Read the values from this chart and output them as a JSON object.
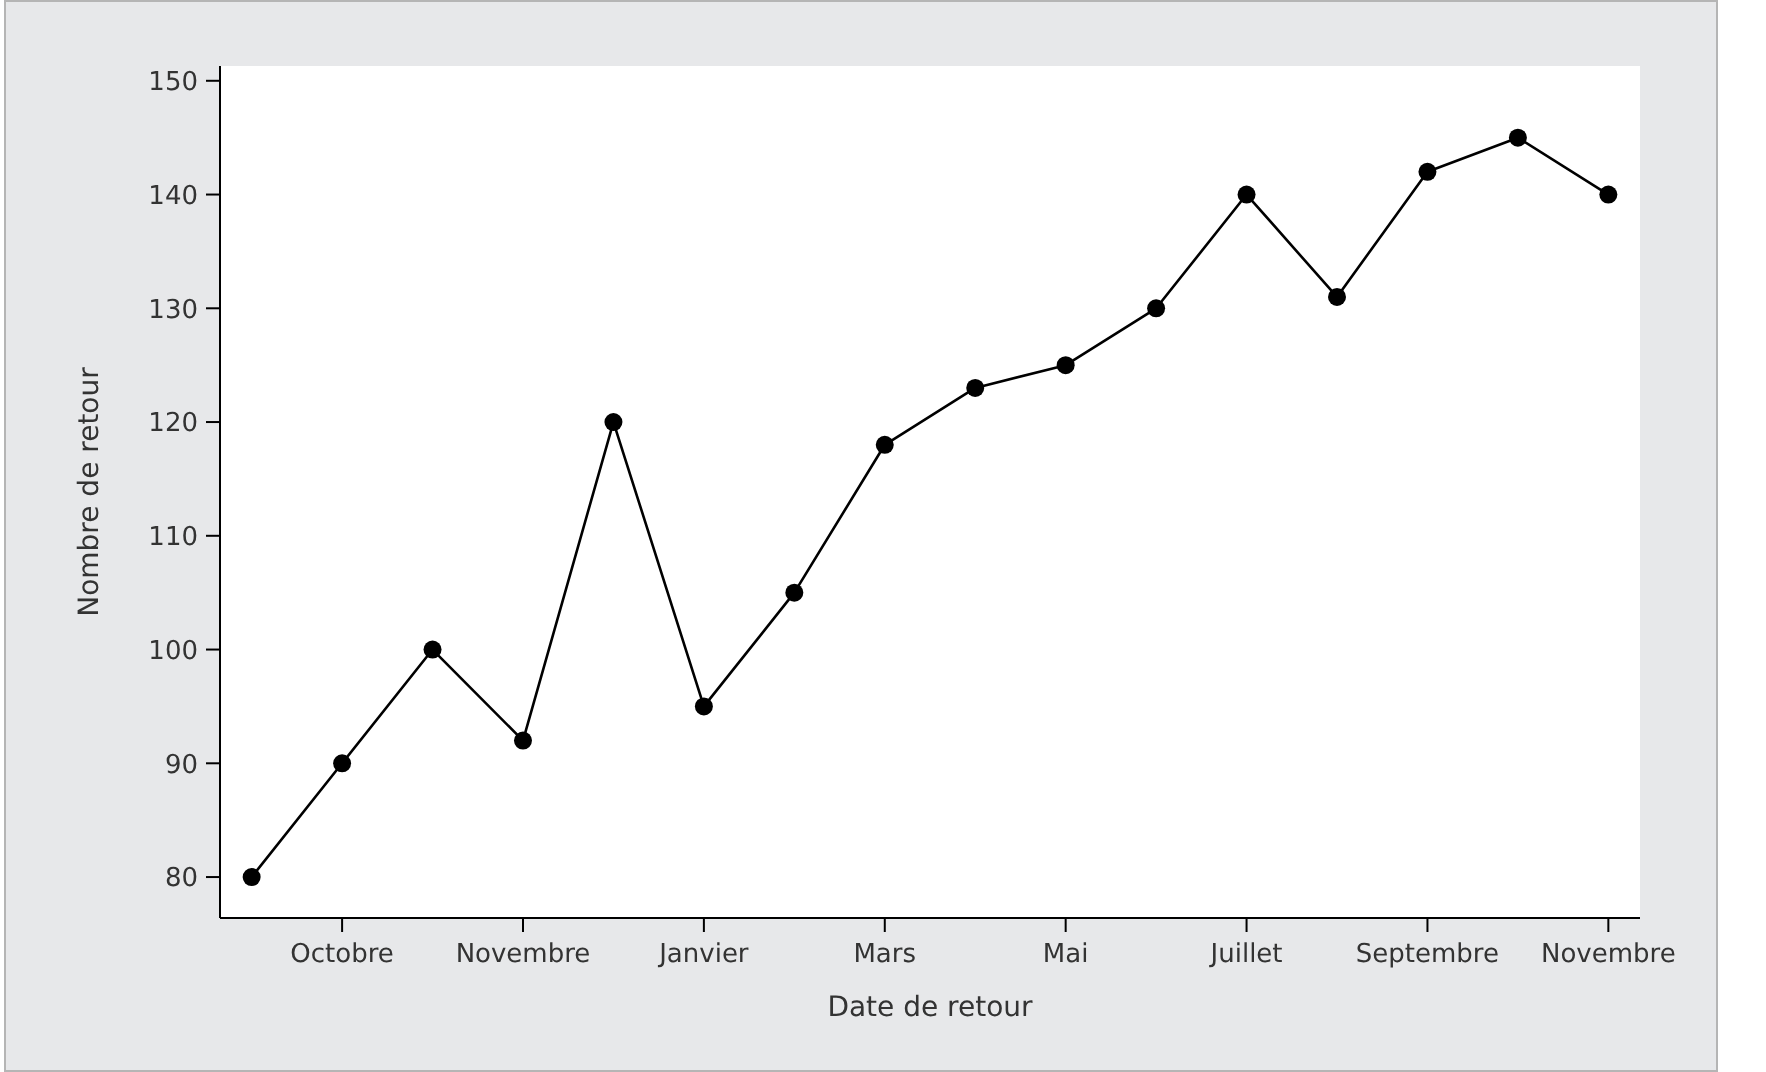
{
  "chart_data": {
    "type": "line",
    "xlabel": "Date de retour",
    "ylabel": "Nombre de retour",
    "categories": [
      null,
      "Octobre",
      null,
      "Novembre",
      null,
      "Janvier",
      null,
      "Mars",
      null,
      "Mai",
      null,
      "Juillet",
      null,
      "Septembre",
      null,
      "Novembre"
    ],
    "series": [
      {
        "color": "#000000",
        "values": [
          80,
          90,
          100,
          92,
          120,
          95,
          105,
          118,
          123,
          125,
          130,
          140,
          131,
          142,
          145,
          140
        ]
      }
    ],
    "ylim": [
      76.4,
      151.3
    ],
    "yticks": [
      80,
      90,
      100,
      110,
      120,
      130,
      140,
      150
    ],
    "grid": false,
    "legend": false,
    "marker": "circle",
    "line_style": "solid"
  }
}
